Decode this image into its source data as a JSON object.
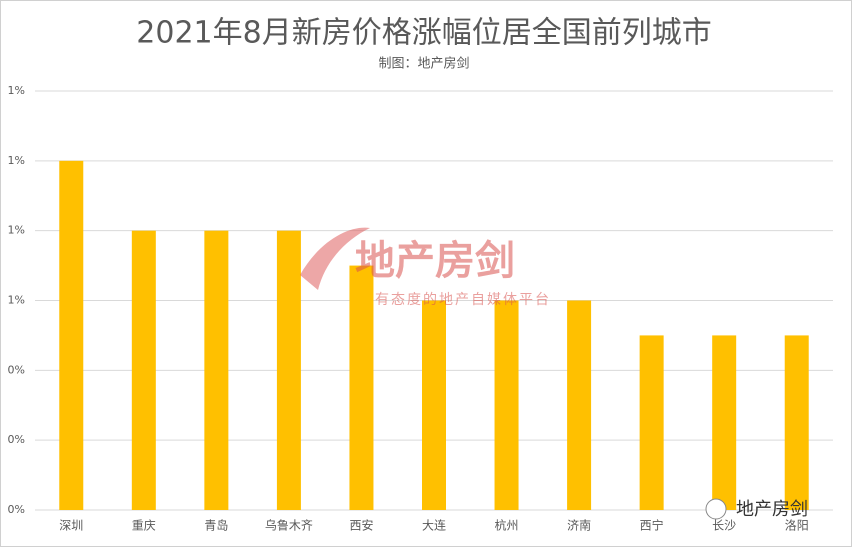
{
  "chart_data": {
    "type": "bar",
    "title": "2021年8月新房价格涨幅位居全国前列城市",
    "subtitle": "制图：地产房剑",
    "categories": [
      "深圳",
      "重庆",
      "青岛",
      "乌鲁木齐",
      "西安",
      "大连",
      "杭州",
      "济南",
      "西宁",
      "长沙",
      "洛阳"
    ],
    "values": [
      1.0,
      0.8,
      0.8,
      0.8,
      0.7,
      0.6,
      0.6,
      0.6,
      0.5,
      0.5,
      0.5
    ],
    "color": "#ffc000",
    "ylim": [
      0,
      1.2
    ],
    "yticks": [
      {
        "value": 0,
        "label": "0%"
      },
      {
        "value": 0.2,
        "label": "0%"
      },
      {
        "value": 0.4,
        "label": "0%"
      },
      {
        "value": 0.6,
        "label": "1%"
      },
      {
        "value": 0.8,
        "label": "1%"
      },
      {
        "value": 1.0,
        "label": "1%"
      },
      {
        "value": 1.2,
        "label": "1%"
      }
    ],
    "grid": true
  },
  "watermark": {
    "brand": "地产房剑",
    "slogan": "有态度的地产自媒体平台",
    "account": "地产房剑"
  }
}
